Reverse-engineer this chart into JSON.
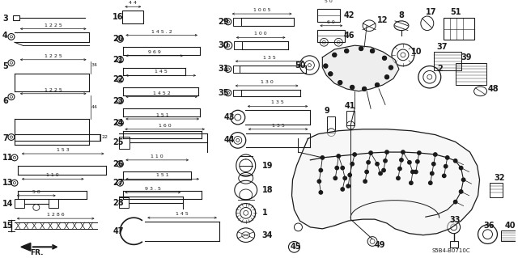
{
  "bg_color": "#ffffff",
  "line_color": "#1a1a1a",
  "fig_width": 6.4,
  "fig_height": 3.19,
  "dpi": 100
}
